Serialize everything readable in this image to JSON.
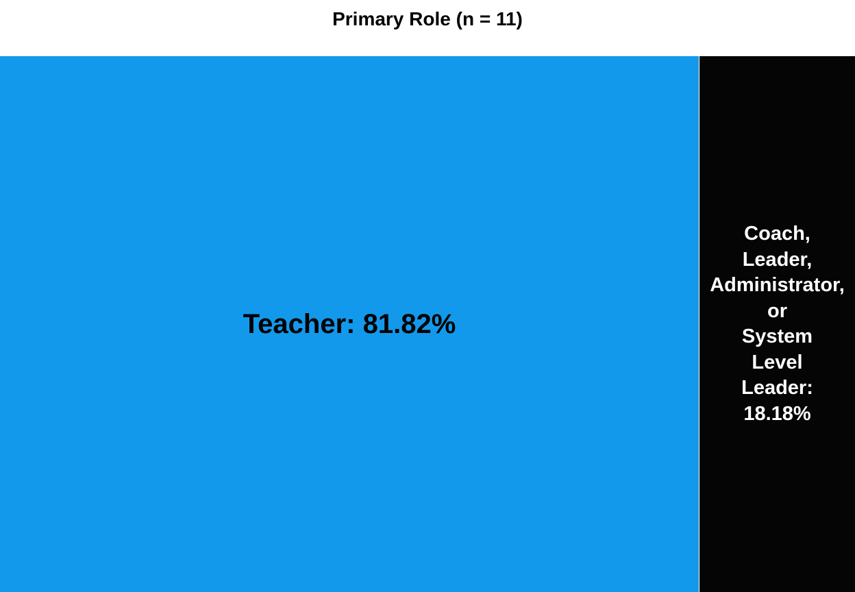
{
  "chart_data": {
    "type": "treemap",
    "title": "Primary Role (n = 11)",
    "items": [
      {
        "label": "Teacher",
        "value": 81.82,
        "display": "Teacher: 81.82%",
        "color": "#1399EB",
        "text_color": "#000000"
      },
      {
        "label": "Coach, Leader, Administrator, or System Level Leader",
        "value": 18.18,
        "display_lines": [
          "Coach,",
          "Leader,",
          "Administrator,",
          "or",
          "System",
          "Level",
          "Leader:",
          "18.18%"
        ],
        "color": "#050505",
        "text_color": "#FFFFFF"
      }
    ]
  }
}
